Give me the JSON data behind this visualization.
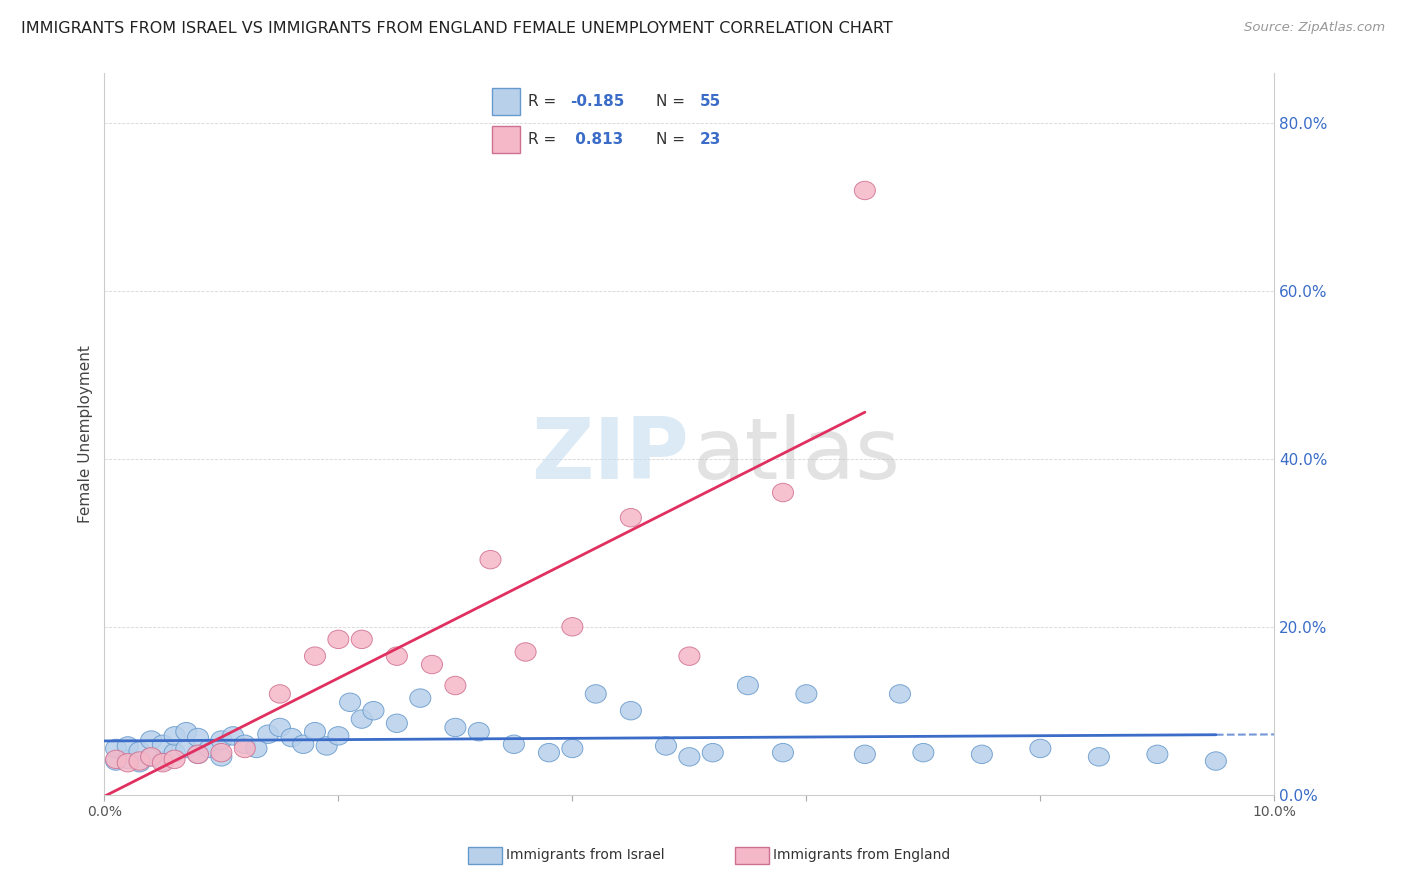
{
  "title": "IMMIGRANTS FROM ISRAEL VS IMMIGRANTS FROM ENGLAND FEMALE UNEMPLOYMENT CORRELATION CHART",
  "source": "Source: ZipAtlas.com",
  "ylabel": "Female Unemployment",
  "watermark_zip": "ZIP",
  "watermark_atlas": "atlas",
  "legend_israel": "Immigrants from Israel",
  "legend_england": "Immigrants from England",
  "R_israel": -0.185,
  "N_israel": 55,
  "R_england": 0.813,
  "N_england": 23,
  "color_israel_fill": "#b8d0ea",
  "color_israel_edge": "#6699cc",
  "color_england_fill": "#f5b8c8",
  "color_england_edge": "#d07090",
  "line_color_israel": "#3a6cc8",
  "line_color_england": "#e03060",
  "background_color": "#ffffff",
  "xlim": [
    0.0,
    0.1
  ],
  "ylim": [
    0.0,
    0.86
  ],
  "yticks": [
    0.0,
    0.2,
    0.4,
    0.6,
    0.8
  ],
  "ytick_labels": [
    "0.0%",
    "20.0%",
    "40.0%",
    "60.0%",
    "80.0%"
  ],
  "israel_x": [
    0.001,
    0.001,
    0.002,
    0.002,
    0.003,
    0.003,
    0.004,
    0.004,
    0.005,
    0.005,
    0.006,
    0.006,
    0.007,
    0.007,
    0.008,
    0.008,
    0.009,
    0.01,
    0.01,
    0.011,
    0.012,
    0.013,
    0.014,
    0.015,
    0.016,
    0.017,
    0.018,
    0.019,
    0.02,
    0.021,
    0.022,
    0.023,
    0.025,
    0.027,
    0.03,
    0.032,
    0.035,
    0.038,
    0.04,
    0.042,
    0.045,
    0.048,
    0.05,
    0.052,
    0.055,
    0.058,
    0.06,
    0.065,
    0.068,
    0.07,
    0.075,
    0.08,
    0.085,
    0.09,
    0.095
  ],
  "israel_y": [
    0.04,
    0.055,
    0.042,
    0.058,
    0.038,
    0.052,
    0.045,
    0.065,
    0.04,
    0.06,
    0.05,
    0.07,
    0.055,
    0.075,
    0.048,
    0.068,
    0.055,
    0.045,
    0.065,
    0.07,
    0.06,
    0.055,
    0.072,
    0.08,
    0.068,
    0.06,
    0.075,
    0.058,
    0.07,
    0.11,
    0.09,
    0.1,
    0.085,
    0.115,
    0.08,
    0.075,
    0.06,
    0.05,
    0.055,
    0.12,
    0.1,
    0.058,
    0.045,
    0.05,
    0.13,
    0.05,
    0.12,
    0.048,
    0.12,
    0.05,
    0.048,
    0.055,
    0.045,
    0.048,
    0.04
  ],
  "england_x": [
    0.001,
    0.002,
    0.003,
    0.004,
    0.005,
    0.006,
    0.008,
    0.01,
    0.012,
    0.015,
    0.018,
    0.02,
    0.022,
    0.025,
    0.028,
    0.03,
    0.033,
    0.036,
    0.04,
    0.045,
    0.05,
    0.058,
    0.065
  ],
  "england_y": [
    0.042,
    0.038,
    0.04,
    0.045,
    0.038,
    0.042,
    0.048,
    0.05,
    0.055,
    0.12,
    0.165,
    0.185,
    0.185,
    0.165,
    0.155,
    0.13,
    0.28,
    0.17,
    0.2,
    0.33,
    0.165,
    0.36,
    0.72
  ]
}
